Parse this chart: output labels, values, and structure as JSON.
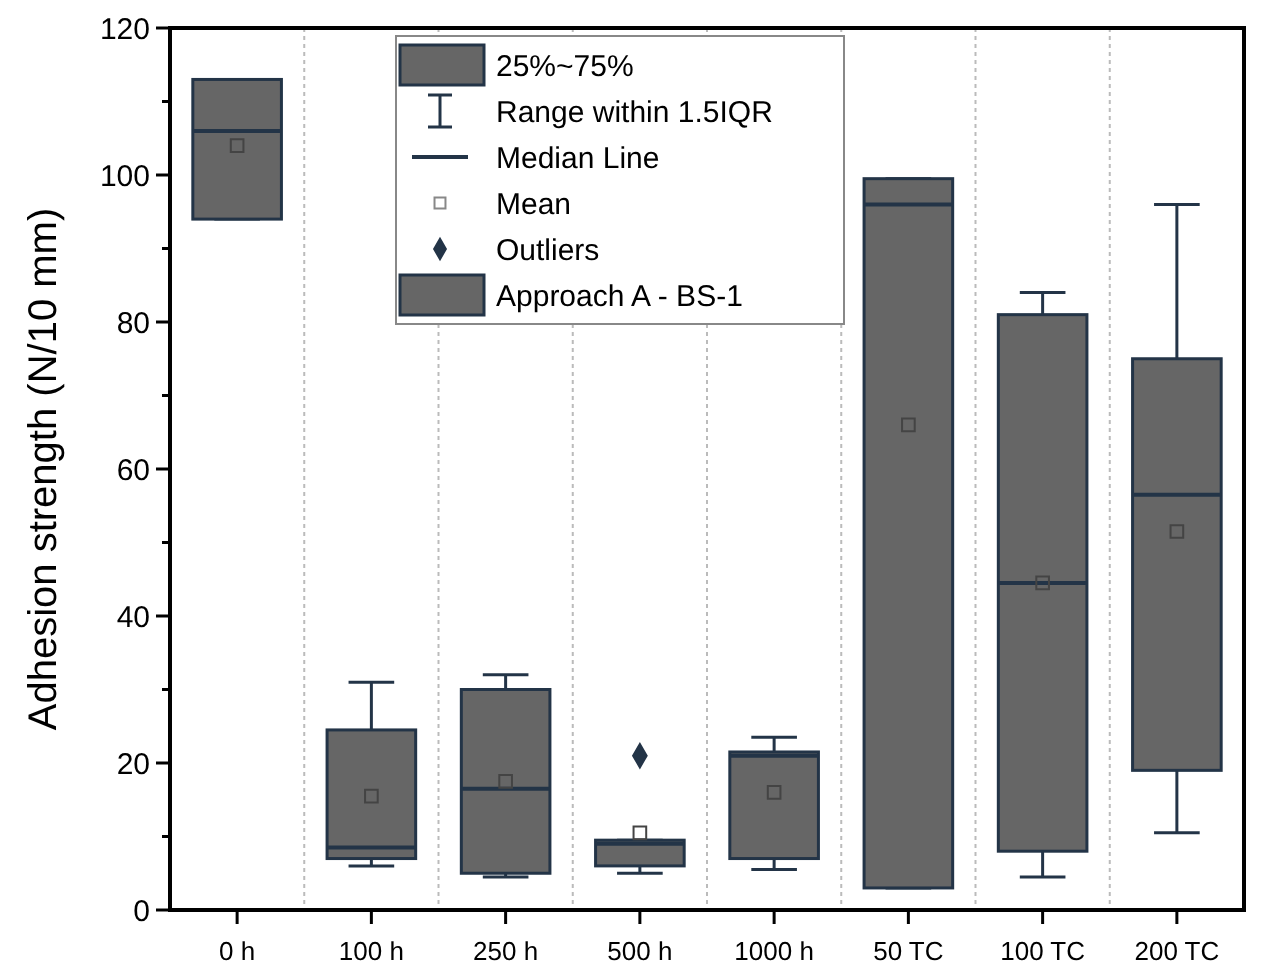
{
  "chart_data": {
    "type": "box",
    "ylabel": "Adhesion strength (N/10 mm)",
    "categories": [
      "0 h",
      "100 h",
      "250 h",
      "500 h",
      "1000 h",
      "50 TC",
      "100 TC",
      "200 TC"
    ],
    "ylim": [
      0,
      120
    ],
    "yticks": [
      0,
      20,
      40,
      60,
      80,
      100,
      120
    ],
    "grid": "x",
    "legend": "top",
    "marker": "square",
    "annotations": [
      "25%~75%",
      "Range within 1.5IQR",
      "Median Line",
      "Mean",
      "Outliers"
    ],
    "series": [
      {
        "name": "Approach A - BS-1",
        "color": "#666666",
        "boxes": [
          {
            "low": 94,
            "q1": 94,
            "median": 106,
            "q3": 113,
            "high": 113,
            "mean": 104
          },
          {
            "low": 6,
            "q1": 7,
            "median": 8.5,
            "q3": 24.5,
            "high": 31,
            "mean": 15.5
          },
          {
            "low": 4.5,
            "q1": 5,
            "median": 16.5,
            "q3": 30,
            "high": 32,
            "mean": 17.5
          },
          {
            "low": 5,
            "q1": 6,
            "median": 9,
            "q3": 9.5,
            "high": 9.5,
            "mean": 10.5,
            "outliers": [
              21
            ]
          },
          {
            "low": 5.5,
            "q1": 7,
            "median": 21,
            "q3": 21.5,
            "high": 23.5,
            "mean": 16
          },
          {
            "low": 3,
            "q1": 3,
            "median": 96,
            "q3": 99.5,
            "high": 99.5,
            "mean": 66
          },
          {
            "low": 4.5,
            "q1": 8,
            "median": 44.5,
            "q3": 81,
            "high": 84,
            "mean": 44.5
          },
          {
            "low": 10.5,
            "q1": 19,
            "median": 56.5,
            "q3": 75,
            "high": 96,
            "mean": 51.5
          }
        ]
      }
    ]
  }
}
